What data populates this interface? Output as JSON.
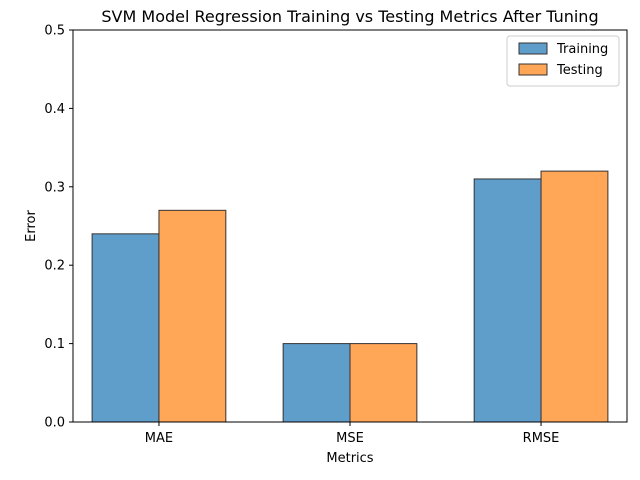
{
  "chart_data": {
    "type": "bar",
    "title": "SVM Model Regression Training vs Testing Metrics After Tuning",
    "xlabel": "Metrics",
    "ylabel": "Error",
    "categories": [
      "MAE",
      "MSE",
      "RMSE"
    ],
    "series": [
      {
        "name": "Training",
        "values": [
          0.24,
          0.1,
          0.31
        ],
        "color": "#5f9ecb"
      },
      {
        "name": "Testing",
        "values": [
          0.27,
          0.1,
          0.32
        ],
        "color": "#ffa657"
      }
    ],
    "ylim": [
      0,
      0.5
    ],
    "yticks": [
      "0.0",
      "0.1",
      "0.2",
      "0.3",
      "0.4",
      "0.5"
    ],
    "grid": false,
    "legend_position": "top-right",
    "bar_edge_color": "#333333"
  }
}
